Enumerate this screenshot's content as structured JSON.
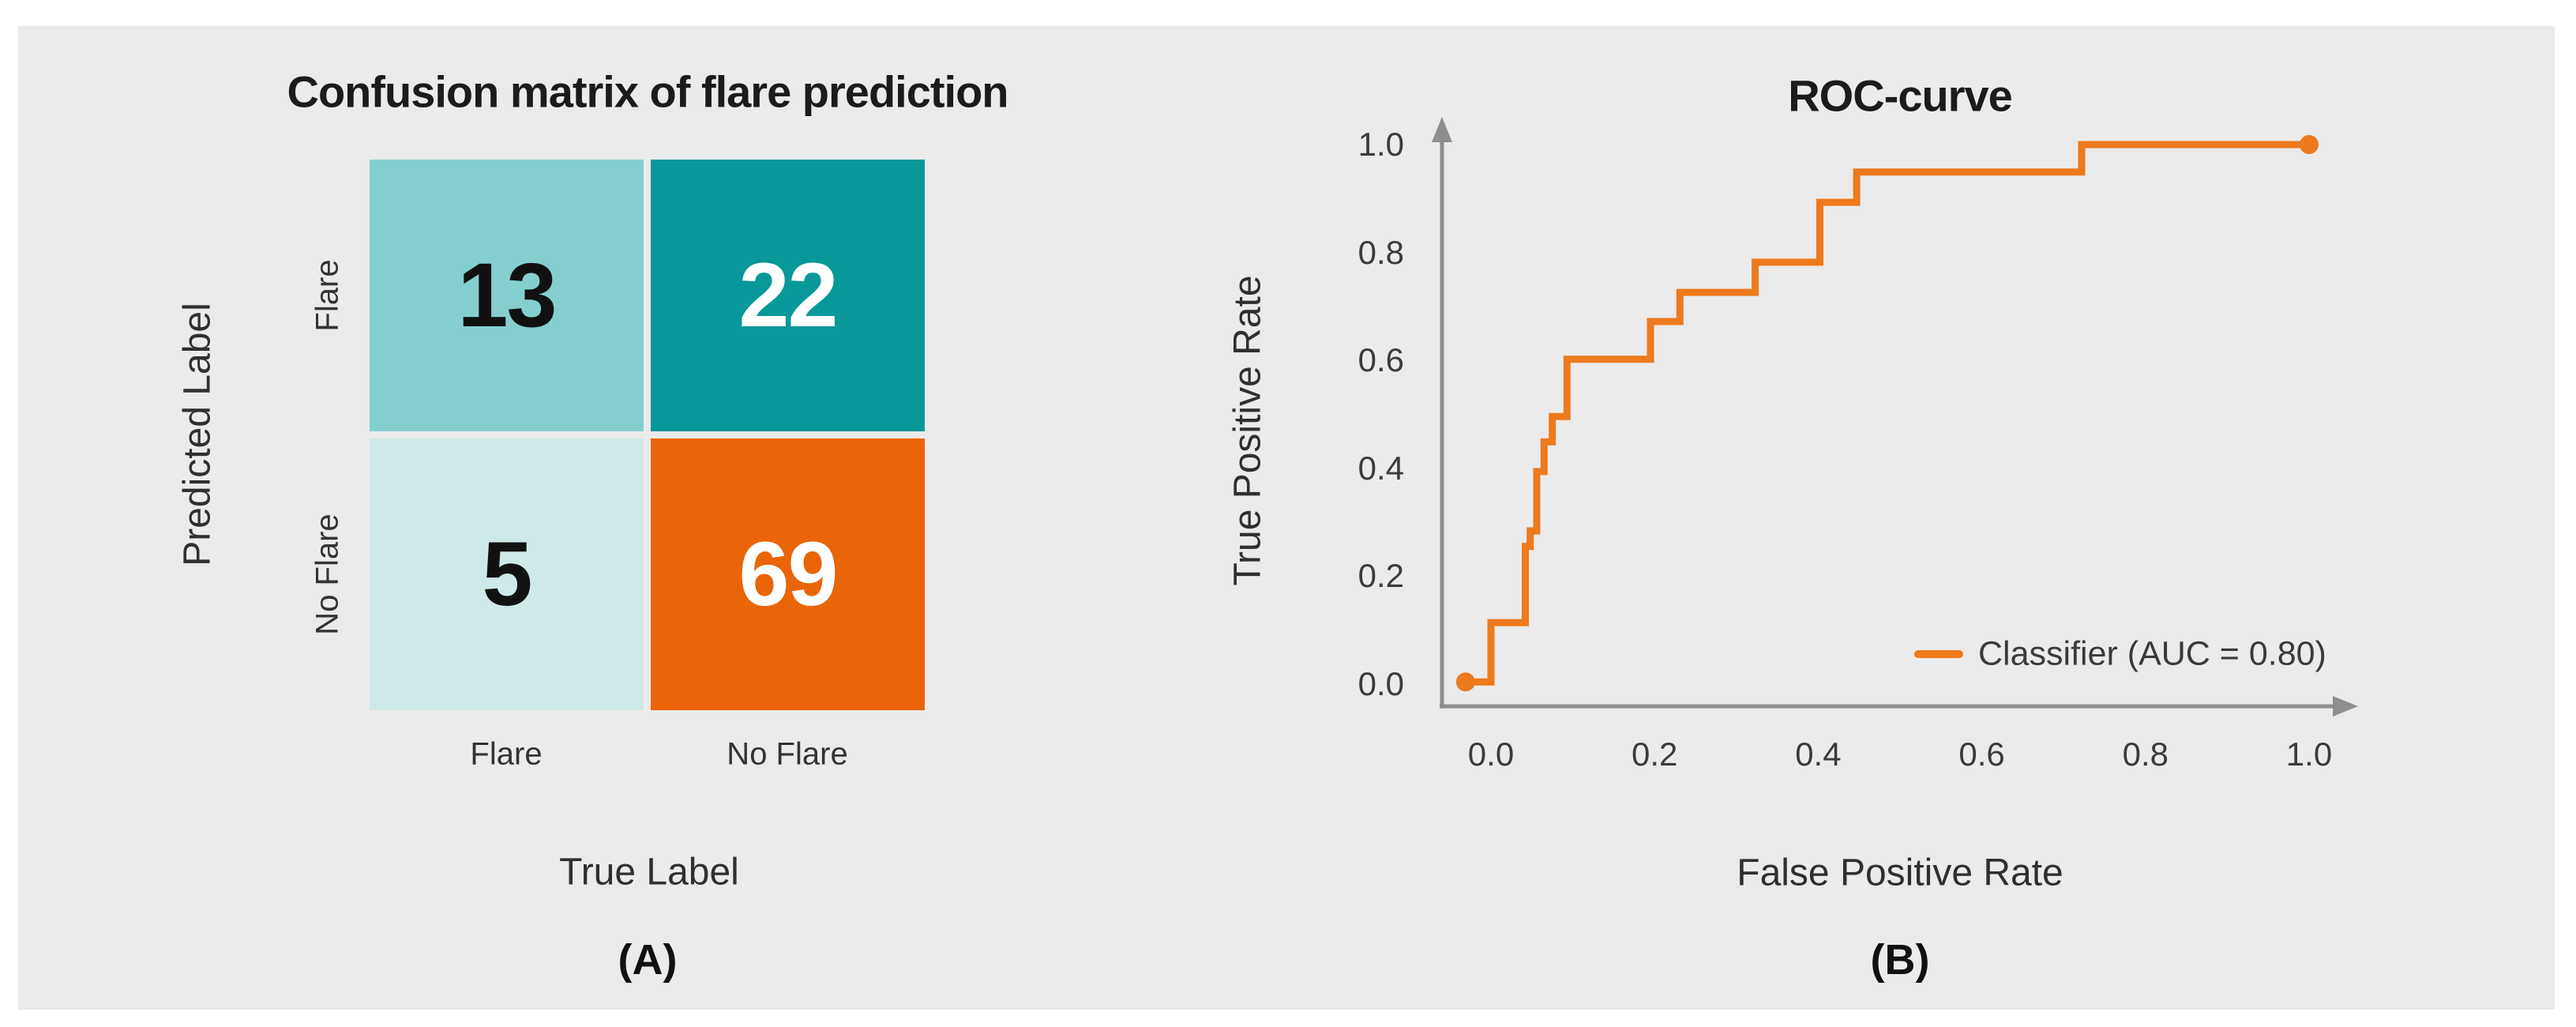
{
  "figure": {
    "background_color": "#FFFFFF",
    "panel_color": "#EBEBEB"
  },
  "panel_a": {
    "title": "Confusion matrix of flare prediction",
    "y_axis_label": "Predicted Label",
    "x_axis_label": "True Label",
    "row_labels": [
      "Flare",
      "No Flare"
    ],
    "col_labels": [
      "Flare",
      "No Flare"
    ],
    "caption": "(A)"
  },
  "panel_b": {
    "title": "ROC-curve",
    "y_axis_label": "True Positive Rate",
    "x_axis_label": "False Positive Rate",
    "legend_label": "Classifier (AUC = 0.80)",
    "caption": "(B)"
  },
  "chart_data": [
    {
      "type": "heatmap",
      "title": "Confusion matrix of flare prediction",
      "xlabel": "True Label",
      "ylabel": "Predicted Label",
      "x_categories": [
        "Flare",
        "No Flare"
      ],
      "y_categories": [
        "Flare",
        "No Flare"
      ],
      "values": [
        [
          13,
          22
        ],
        [
          5,
          69
        ]
      ],
      "cell_colors": [
        [
          "#85CFCF",
          "#089899"
        ],
        [
          "#CFE9E8",
          "#E96507"
        ]
      ],
      "value_colors": [
        [
          "#111111",
          "#FFFFFF"
        ],
        [
          "#111111",
          "#FFFFFF"
        ]
      ]
    },
    {
      "type": "line",
      "title": "ROC-curve",
      "xlabel": "False Positive Rate",
      "ylabel": "True Positive Rate",
      "x_ticks": [
        0.0,
        0.2,
        0.4,
        0.6,
        0.8,
        1.0
      ],
      "y_ticks": [
        0.0,
        0.2,
        0.4,
        0.6,
        0.8,
        1.0
      ],
      "xlim": [
        -0.05,
        1.08
      ],
      "ylim": [
        0.0,
        1.0
      ],
      "grid": false,
      "legend_position": "lower right",
      "series": [
        {
          "name": "Classifier (AUC = 0.80)",
          "auc": 0.8,
          "color": "#ED7A1C",
          "marker_endpoints": true,
          "step_points": [
            [
              -0.031,
              0.004
            ],
            [
              0.0,
              0.004
            ],
            [
              0.0,
              0.114
            ],
            [
              0.042,
              0.114
            ],
            [
              0.042,
              0.255
            ],
            [
              0.048,
              0.255
            ],
            [
              0.048,
              0.284
            ],
            [
              0.056,
              0.284
            ],
            [
              0.056,
              0.394
            ],
            [
              0.065,
              0.394
            ],
            [
              0.065,
              0.449
            ],
            [
              0.075,
              0.449
            ],
            [
              0.075,
              0.496
            ],
            [
              0.093,
              0.496
            ],
            [
              0.093,
              0.602
            ],
            [
              0.195,
              0.602
            ],
            [
              0.195,
              0.672
            ],
            [
              0.231,
              0.672
            ],
            [
              0.231,
              0.726
            ],
            [
              0.323,
              0.726
            ],
            [
              0.323,
              0.782
            ],
            [
              0.402,
              0.782
            ],
            [
              0.402,
              0.893
            ],
            [
              0.447,
              0.893
            ],
            [
              0.447,
              0.949
            ],
            [
              0.722,
              0.949
            ],
            [
              0.722,
              1.0
            ],
            [
              1.0,
              1.0
            ]
          ]
        }
      ]
    }
  ]
}
